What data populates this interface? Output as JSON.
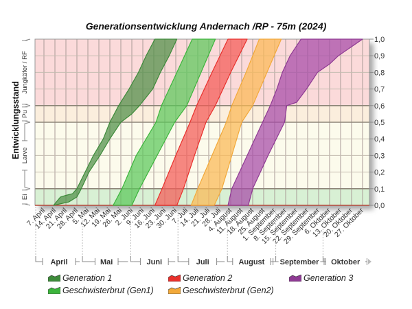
{
  "chart_data": {
    "type": "area",
    "title": "Generationsentwicklung Andernach /RP - 75m (2024)",
    "ylabel": "Entwicklungsstand",
    "xlabel": "",
    "x_unit": "weeks since 7. April (band boundaries as [week, stage])",
    "ylim": [
      0,
      1.0
    ],
    "y_ticks": [
      "0,0",
      "0,1",
      "0,2",
      "0,3",
      "0,4",
      "0,5",
      "0,6",
      "0,7",
      "0,8",
      "0,9",
      "1,0"
    ],
    "x_ticks": [
      "7. April",
      "14. April",
      "21. April",
      "28. April",
      "5. Mai",
      "12. Mai",
      "19. Mai",
      "26. Mai",
      "2. Juni",
      "9. Juni",
      "16. Juni",
      "23. Juni",
      "30. Juni",
      "7. Juli",
      "14. Juli",
      "21. Juli",
      "28. Juli",
      "4. August",
      "11. August",
      "18. August",
      "25. August",
      "1. September",
      "8. September",
      "15. September",
      "22. September",
      "29. September",
      "6. Oktober",
      "13. Oktober",
      "20. Oktober",
      "27. Oktober"
    ],
    "months": [
      {
        "label": "April",
        "start_week": -0.75,
        "end_week": 3.5
      },
      {
        "label": "Mai",
        "start_week": 3.5,
        "end_week": 7.9
      },
      {
        "label": "Juni",
        "start_week": 7.9,
        "end_week": 12.2
      },
      {
        "label": "Juli",
        "start_week": 12.2,
        "end_week": 16.7
      },
      {
        "label": "August",
        "start_week": 16.7,
        "end_week": 21.1
      },
      {
        "label": "September",
        "start_week": 21.1,
        "end_week": 25.4
      },
      {
        "label": "Oktober",
        "start_week": 25.4,
        "end_week": 29.5
      }
    ],
    "stages": [
      {
        "label": "Ei",
        "from": 0.0,
        "to": 0.1,
        "color": "#d8f0d4"
      },
      {
        "label": "Larve",
        "from": 0.1,
        "to": 0.5,
        "color": "#fcfbec"
      },
      {
        "label": "Pu",
        "from": 0.5,
        "to": 0.6,
        "color": "#fbeedd"
      },
      {
        "label": "Jungkäfer / RF",
        "from": 0.6,
        "to": 1.0,
        "color": "#fbdada"
      }
    ],
    "grid": true,
    "legend_position": "bottom",
    "series": [
      {
        "name": "Generation 1",
        "color": "#3d8a3a",
        "fill": "#4f8f47",
        "upper": [
          [
            0.875,
            0
          ],
          [
            1.5,
            0.05
          ],
          [
            2.0,
            0.06
          ],
          [
            2.6,
            0.07
          ],
          [
            3.0,
            0.1
          ],
          [
            3.75,
            0.2
          ],
          [
            4.5,
            0.3
          ],
          [
            5.4,
            0.4
          ],
          [
            6.0,
            0.5
          ],
          [
            6.8,
            0.6
          ],
          [
            7.75,
            0.7
          ],
          [
            8.6,
            0.8
          ],
          [
            9.3,
            0.9
          ],
          [
            10.1,
            1.0
          ]
        ],
        "lower": [
          [
            0.875,
            0
          ],
          [
            2.25,
            0.02
          ],
          [
            3.0,
            0.05
          ],
          [
            3.4,
            0.1
          ],
          [
            4.1,
            0.2
          ],
          [
            5.1,
            0.3
          ],
          [
            6.0,
            0.4
          ],
          [
            7.0,
            0.5
          ],
          [
            8.0,
            0.55
          ],
          [
            8.7,
            0.6
          ],
          [
            9.9,
            0.7
          ],
          [
            10.6,
            0.8
          ],
          [
            11.4,
            0.9
          ],
          [
            12.1,
            1.0
          ]
        ]
      },
      {
        "name": "Geschwisterbrut (Gen1)",
        "color": "#3cb43c",
        "fill": "#5cc75a",
        "upper": [
          [
            6.3,
            0
          ],
          [
            7.1,
            0.1
          ],
          [
            8.4,
            0.3
          ],
          [
            10.2,
            0.5
          ],
          [
            10.7,
            0.6
          ],
          [
            12.1,
            0.8
          ],
          [
            13.5,
            1.0
          ]
        ],
        "lower": [
          [
            8.0,
            0
          ],
          [
            8.7,
            0.1
          ],
          [
            10.3,
            0.3
          ],
          [
            11.9,
            0.5
          ],
          [
            13.0,
            0.6
          ],
          [
            14.3,
            0.8
          ],
          [
            15.6,
            1.0
          ]
        ]
      },
      {
        "name": "Generation 2",
        "color": "#e8302c",
        "fill": "#f45a56",
        "upper": [
          [
            10.1,
            0
          ],
          [
            10.75,
            0.1
          ],
          [
            12.0,
            0.3
          ],
          [
            13.3,
            0.5
          ],
          [
            13.9,
            0.6
          ],
          [
            15.3,
            0.8
          ],
          [
            16.75,
            1.0
          ]
        ],
        "lower": [
          [
            12.1,
            0
          ],
          [
            12.7,
            0.1
          ],
          [
            13.7,
            0.3
          ],
          [
            14.75,
            0.5
          ],
          [
            15.6,
            0.6
          ],
          [
            17.0,
            0.8
          ],
          [
            18.5,
            1.0
          ]
        ]
      },
      {
        "name": "Geschwisterbrut (Gen2)",
        "color": "#f2a93a",
        "fill": "#fbb955",
        "upper": [
          [
            13.4,
            0
          ],
          [
            14.0,
            0.1
          ],
          [
            15.3,
            0.3
          ],
          [
            16.6,
            0.5
          ],
          [
            17.1,
            0.6
          ],
          [
            18.4,
            0.8
          ],
          [
            19.6,
            1.0
          ]
        ],
        "lower": [
          [
            15.5,
            0
          ],
          [
            16.2,
            0.1
          ],
          [
            17.1,
            0.3
          ],
          [
            18.0,
            0.5
          ],
          [
            19.0,
            0.6
          ],
          [
            20.3,
            0.8
          ],
          [
            21.6,
            1.0
          ]
        ]
      },
      {
        "name": "Generation 3",
        "color": "#8e3a93",
        "fill": "#a64aa8",
        "upper": [
          [
            16.75,
            0
          ],
          [
            17.1,
            0.1
          ],
          [
            18.5,
            0.3
          ],
          [
            19.9,
            0.5
          ],
          [
            20.6,
            0.6
          ],
          [
            21.2,
            0.7
          ],
          [
            21.7,
            0.8
          ],
          [
            22.4,
            0.9
          ],
          [
            23.0,
            0.96
          ],
          [
            23.4,
            1.0
          ]
        ],
        "lower": [
          [
            18.6,
            0
          ],
          [
            19.0,
            0.1
          ],
          [
            20.4,
            0.3
          ],
          [
            21.9,
            0.5
          ],
          [
            22.1,
            0.6
          ],
          [
            23.0,
            0.62
          ],
          [
            23.9,
            0.7
          ],
          [
            24.9,
            0.8
          ],
          [
            26.0,
            0.85
          ],
          [
            26.8,
            0.9
          ],
          [
            27.9,
            0.95
          ],
          [
            29.0,
            1.0
          ]
        ]
      }
    ]
  },
  "legend": [
    {
      "label": "Generation 1",
      "color": "#3d8a3a"
    },
    {
      "label": "Generation 2",
      "color": "#e8302c"
    },
    {
      "label": "Generation 3",
      "color": "#8e3a93"
    },
    {
      "label": "Geschwisterbrut (Gen1)",
      "color": "#3cb43c"
    },
    {
      "label": "Geschwisterbrut (Gen2)",
      "color": "#f2a93a"
    }
  ]
}
